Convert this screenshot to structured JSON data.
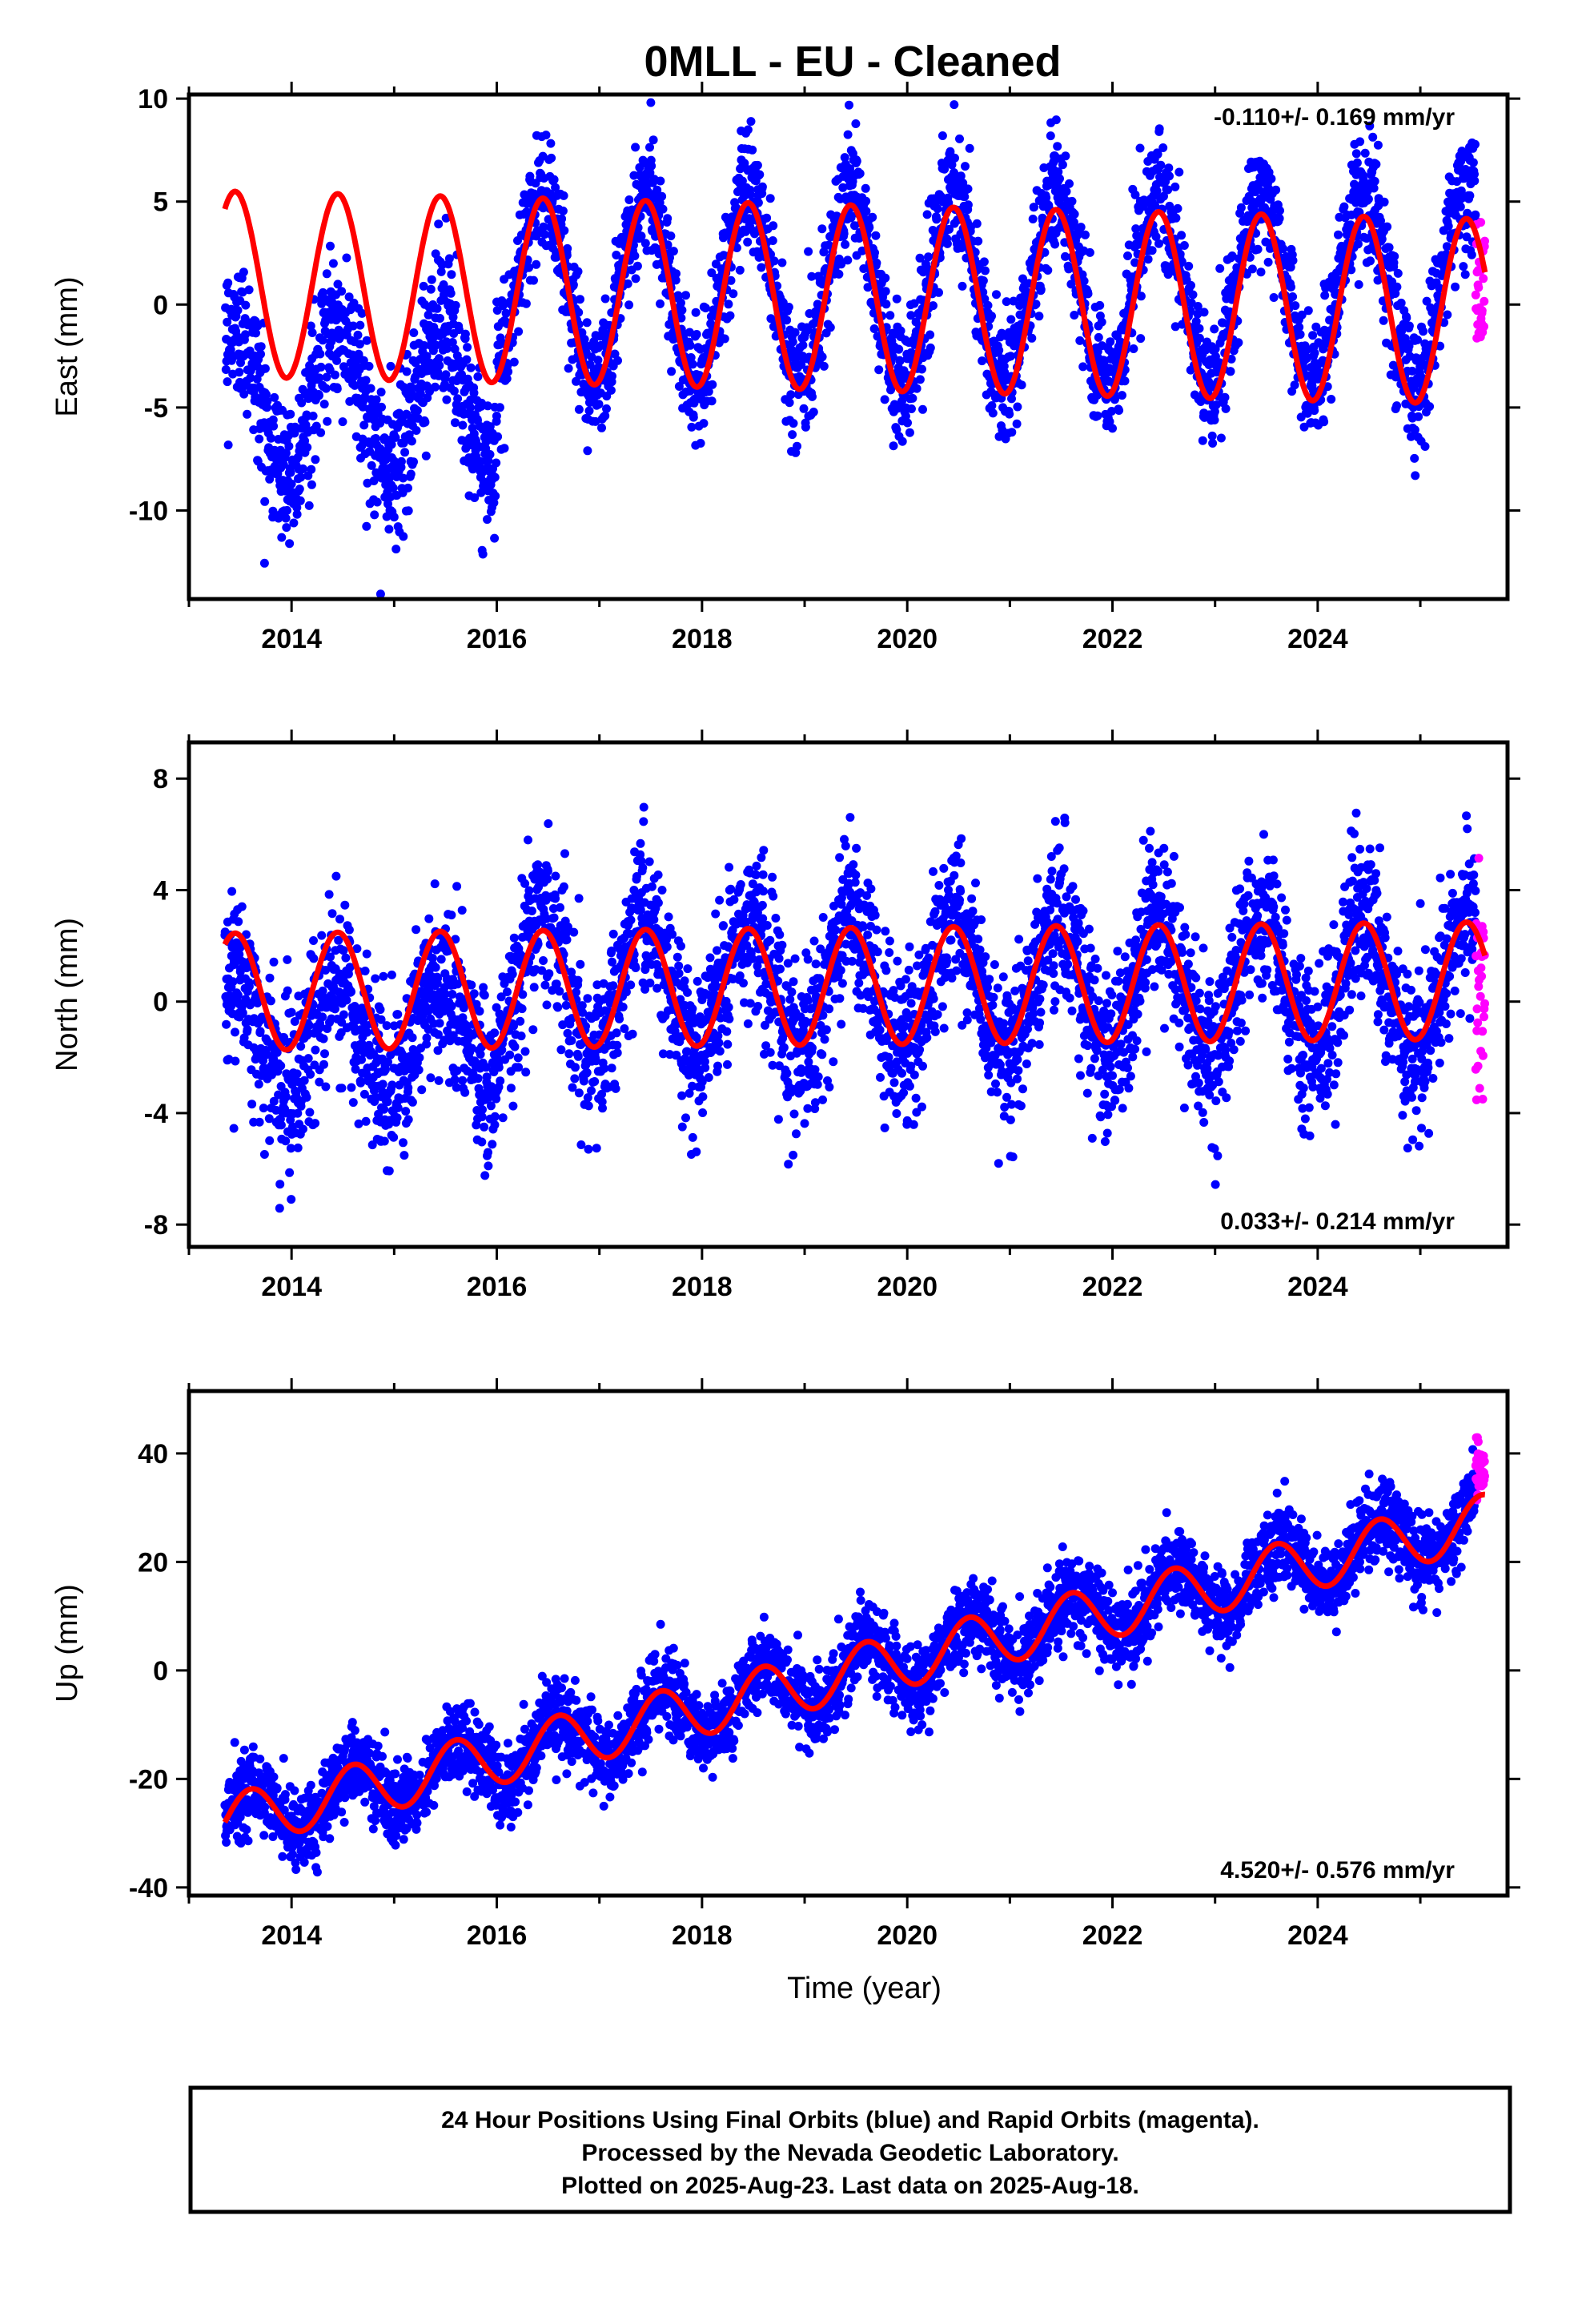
{
  "title": "0MLL  - EU - Cleaned",
  "colors": {
    "final": "#0000ff",
    "rapid": "#ff00ff",
    "model": "#ff0000",
    "frame": "#000000"
  },
  "footer": {
    "line1": "24 Hour Positions Using Final Orbits (blue) and Rapid Orbits (magenta).",
    "line2": "Processed by the Nevada Geodetic Laboratory.",
    "line3": "Plotted on 2025-Aug-23. Last data on 2025-Aug-18."
  },
  "chart_data": [
    {
      "type": "scatter",
      "component": "East",
      "ylabel": "East (mm)",
      "xlabel": "",
      "xlim": [
        2013.0,
        2025.85
      ],
      "ylim": [
        -14.3,
        10.2
      ],
      "xticks": [
        2014,
        2016,
        2018,
        2020,
        2022,
        2024
      ],
      "yticks": [
        -10,
        -5,
        0,
        5,
        10
      ],
      "rate": "-0.110+/- 0.169 mm/yr",
      "rate_position": "top-right",
      "data_span": [
        2013.35,
        2025.63
      ],
      "rapid_span": [
        2025.54,
        2025.63
      ],
      "model": {
        "offset": 1.0,
        "trend": -0.11,
        "annual_amplitude": 4.5,
        "peak_phase": 0.45
      },
      "series": [
        {
          "name": "Final Orbits (blue)",
          "segments": [
            {
              "x": [
                2013.35,
                2016.0
              ],
              "mean": -4.5,
              "annual_amplitude": 3.5,
              "scatter": 1.8
            },
            {
              "x": [
                2016.0,
                2025.54
              ],
              "mean": 0.8,
              "annual_amplitude": 4.6,
              "scatter": 1.5
            }
          ]
        },
        {
          "name": "Rapid Orbits (magenta)",
          "segments": [
            {
              "x": [
                2025.54,
                2025.63
              ],
              "mean": 1.0,
              "annual_amplitude": 0,
              "scatter": 1.5
            }
          ]
        }
      ]
    },
    {
      "type": "scatter",
      "component": "North",
      "ylabel": "North (mm)",
      "xlabel": "",
      "xlim": [
        2013.0,
        2025.85
      ],
      "ylim": [
        -8.8,
        9.3
      ],
      "xticks": [
        2014,
        2016,
        2018,
        2020,
        2022,
        2024
      ],
      "yticks": [
        -8,
        -4,
        0,
        4,
        8
      ],
      "rate": "0.033+/- 0.214 mm/yr",
      "rate_position": "bottom-right",
      "data_span": [
        2013.35,
        2025.63
      ],
      "rapid_span": [
        2025.54,
        2025.63
      ],
      "model": {
        "offset": 0.35,
        "trend": 0.033,
        "annual_amplitude": 2.1,
        "peak_phase": 0.45
      },
      "series": [
        {
          "name": "Final Orbits (blue)",
          "segments": [
            {
              "x": [
                2013.35,
                2016.0
              ],
              "mean": -1.2,
              "annual_amplitude": 1.8,
              "scatter": 1.5
            },
            {
              "x": [
                2016.0,
                2025.54
              ],
              "mean": 0.6,
              "annual_amplitude": 2.5,
              "scatter": 1.4
            }
          ]
        },
        {
          "name": "Rapid Orbits (magenta)",
          "segments": [
            {
              "x": [
                2025.54,
                2025.63
              ],
              "mean": 0.5,
              "annual_amplitude": 0,
              "scatter": 1.8
            }
          ]
        }
      ]
    },
    {
      "type": "scatter",
      "component": "Up",
      "ylabel": "Up (mm)",
      "xlabel": "Time (year)",
      "xlim": [
        2013.0,
        2025.85
      ],
      "ylim": [
        -41.5,
        51.5
      ],
      "xticks": [
        2014,
        2016,
        2018,
        2020,
        2022,
        2024
      ],
      "yticks": [
        -40,
        -20,
        0,
        20,
        40
      ],
      "rate": "4.520+/- 0.576 mm/yr",
      "rate_position": "bottom-right",
      "data_span": [
        2013.35,
        2025.63
      ],
      "rapid_span": [
        2025.54,
        2025.63
      ],
      "model": {
        "offset": -28.0,
        "trend": 4.52,
        "annual_amplitude": 5.0,
        "peak_phase": 0.6
      },
      "series": [
        {
          "name": "Final Orbits (blue)",
          "segments": [
            {
              "x": [
                2013.35,
                2025.54
              ],
              "mean": -28.0,
              "trend": 4.52,
              "annual_amplitude": 5.0,
              "scatter": 3.6
            }
          ]
        },
        {
          "name": "Rapid Orbits (magenta)",
          "segments": [
            {
              "x": [
                2025.54,
                2025.63
              ],
              "mean": 38.0,
              "annual_amplitude": 0,
              "scatter": 3.0
            }
          ]
        }
      ]
    }
  ]
}
